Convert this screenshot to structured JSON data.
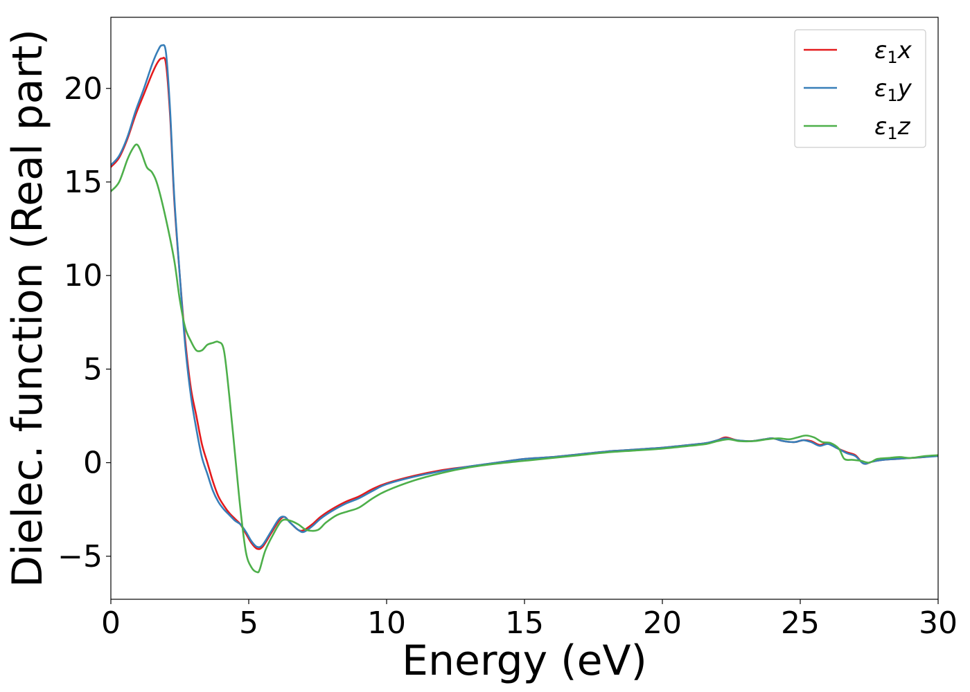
{
  "chart_data": {
    "type": "line",
    "xlabel": "Energy (eV)",
    "ylabel": "Dielec. function (Real part)",
    "xlim": [
      0,
      30
    ],
    "ylim": [
      -7.3,
      23.8
    ],
    "xticks": [
      0,
      5,
      10,
      15,
      20,
      25,
      30
    ],
    "xtick_labels": [
      "0",
      "5",
      "10",
      "15",
      "20",
      "25",
      "30"
    ],
    "yticks": [
      -5,
      0,
      5,
      10,
      15,
      20
    ],
    "ytick_labels": [
      "−5",
      "0",
      "5",
      "10",
      "15",
      "20"
    ],
    "grid": false,
    "legend_position": "top-right",
    "series": [
      {
        "name": "ε1x",
        "legend": {
          "base": "ε",
          "sub": "1",
          "suffix": "x"
        },
        "color": "#e41a1c",
        "x": [
          0,
          0.3,
          0.6,
          0.9,
          1.2,
          1.5,
          1.7,
          1.85,
          2.0,
          2.15,
          2.3,
          2.5,
          2.7,
          2.9,
          3.1,
          3.3,
          3.5,
          3.7,
          3.9,
          4.1,
          4.3,
          4.5,
          4.7,
          4.9,
          5.1,
          5.3,
          5.5,
          5.8,
          6.1,
          6.3,
          6.5,
          6.8,
          7.0,
          7.3,
          7.6,
          8.0,
          8.5,
          9.0,
          9.5,
          10.0,
          11.0,
          12.0,
          13.0,
          14.0,
          15.0,
          16.0,
          17.0,
          18.0,
          19.0,
          20.0,
          21.0,
          21.6,
          22.0,
          22.3,
          22.7,
          23.2,
          23.7,
          24.0,
          24.4,
          24.8,
          25.1,
          25.4,
          25.7,
          26.0,
          26.3,
          26.7,
          27.0,
          27.3,
          27.6,
          28.0,
          28.5,
          29.0,
          29.5,
          30.0
        ],
        "y": [
          15.8,
          16.3,
          17.3,
          18.6,
          19.7,
          20.8,
          21.4,
          21.6,
          21.3,
          18.5,
          14.0,
          10.0,
          6.5,
          4.0,
          2.5,
          1.0,
          0.0,
          -1.0,
          -1.8,
          -2.3,
          -2.7,
          -3.0,
          -3.3,
          -3.8,
          -4.3,
          -4.6,
          -4.5,
          -3.8,
          -3.1,
          -2.9,
          -3.2,
          -3.6,
          -3.6,
          -3.3,
          -2.9,
          -2.5,
          -2.1,
          -1.8,
          -1.4,
          -1.1,
          -0.7,
          -0.4,
          -0.2,
          0.0,
          0.2,
          0.3,
          0.45,
          0.6,
          0.7,
          0.8,
          0.95,
          1.05,
          1.2,
          1.35,
          1.2,
          1.15,
          1.25,
          1.3,
          1.15,
          1.1,
          1.2,
          1.15,
          0.95,
          1.05,
          0.8,
          0.55,
          0.4,
          -0.05,
          0.05,
          0.15,
          0.2,
          0.25,
          0.3,
          0.4
        ]
      },
      {
        "name": "ε1y",
        "legend": {
          "base": "ε",
          "sub": "1",
          "suffix": "y"
        },
        "color": "#377eb8",
        "x": [
          0,
          0.3,
          0.6,
          0.9,
          1.2,
          1.5,
          1.7,
          1.85,
          2.0,
          2.15,
          2.3,
          2.5,
          2.7,
          2.9,
          3.1,
          3.3,
          3.5,
          3.7,
          3.9,
          4.1,
          4.3,
          4.5,
          4.7,
          4.9,
          5.1,
          5.3,
          5.5,
          5.8,
          6.1,
          6.3,
          6.5,
          6.8,
          7.0,
          7.3,
          7.6,
          8.0,
          8.5,
          9.0,
          9.5,
          10.0,
          11.0,
          12.0,
          13.0,
          14.0,
          15.0,
          16.0,
          17.0,
          18.0,
          19.0,
          20.0,
          21.0,
          21.6,
          22.0,
          22.3,
          22.7,
          23.2,
          23.7,
          24.0,
          24.4,
          24.8,
          25.1,
          25.4,
          25.7,
          26.0,
          26.3,
          26.7,
          27.0,
          27.3,
          27.6,
          28.0,
          28.5,
          29.0,
          29.5,
          30.0
        ],
        "y": [
          15.9,
          16.4,
          17.4,
          18.8,
          20.0,
          21.3,
          22.0,
          22.3,
          21.9,
          18.8,
          14.2,
          10.0,
          6.2,
          3.6,
          1.8,
          0.3,
          -0.6,
          -1.5,
          -2.1,
          -2.5,
          -2.8,
          -3.1,
          -3.3,
          -3.7,
          -4.2,
          -4.5,
          -4.4,
          -3.7,
          -3.0,
          -2.9,
          -3.2,
          -3.6,
          -3.7,
          -3.4,
          -3.0,
          -2.6,
          -2.2,
          -1.9,
          -1.5,
          -1.15,
          -0.75,
          -0.45,
          -0.2,
          0.0,
          0.2,
          0.3,
          0.45,
          0.6,
          0.7,
          0.8,
          0.95,
          1.05,
          1.2,
          1.3,
          1.2,
          1.15,
          1.25,
          1.3,
          1.15,
          1.1,
          1.2,
          1.1,
          0.9,
          1.0,
          0.8,
          0.5,
          0.35,
          -0.05,
          0.05,
          0.15,
          0.2,
          0.25,
          0.3,
          0.35
        ]
      },
      {
        "name": "ε1z",
        "legend": {
          "base": "ε",
          "sub": "1",
          "suffix": "z"
        },
        "color": "#4daf4a",
        "x": [
          0,
          0.3,
          0.6,
          0.8,
          0.95,
          1.1,
          1.3,
          1.5,
          1.7,
          2.0,
          2.3,
          2.5,
          2.7,
          2.9,
          3.1,
          3.3,
          3.5,
          3.7,
          3.9,
          4.1,
          4.3,
          4.5,
          4.7,
          4.9,
          5.1,
          5.3,
          5.4,
          5.6,
          5.9,
          6.2,
          6.5,
          6.8,
          7.1,
          7.5,
          7.8,
          8.2,
          8.6,
          9.0,
          9.5,
          10.0,
          11.0,
          12.0,
          13.0,
          14.0,
          15.0,
          16.0,
          17.0,
          18.0,
          19.0,
          20.0,
          21.0,
          21.6,
          22.0,
          22.4,
          22.8,
          23.3,
          23.8,
          24.2,
          24.6,
          24.9,
          25.2,
          25.5,
          25.8,
          26.1,
          26.4,
          26.6,
          26.9,
          27.2,
          27.5,
          27.8,
          28.2,
          28.6,
          29.0,
          29.5,
          30.0
        ],
        "y": [
          14.5,
          15.0,
          16.2,
          16.8,
          17.0,
          16.6,
          15.8,
          15.5,
          14.8,
          13.0,
          10.8,
          8.7,
          7.2,
          6.5,
          6.0,
          6.0,
          6.3,
          6.4,
          6.45,
          6.0,
          3.5,
          0.5,
          -2.5,
          -4.8,
          -5.6,
          -5.85,
          -5.7,
          -4.7,
          -3.8,
          -3.1,
          -3.1,
          -3.3,
          -3.6,
          -3.6,
          -3.2,
          -2.8,
          -2.6,
          -2.4,
          -1.9,
          -1.5,
          -0.95,
          -0.55,
          -0.25,
          -0.05,
          0.1,
          0.25,
          0.4,
          0.55,
          0.65,
          0.75,
          0.9,
          1.0,
          1.15,
          1.25,
          1.15,
          1.15,
          1.25,
          1.3,
          1.25,
          1.35,
          1.45,
          1.35,
          1.1,
          1.05,
          0.75,
          0.2,
          0.15,
          0.1,
          0.0,
          0.2,
          0.25,
          0.3,
          0.25,
          0.35,
          0.4
        ]
      }
    ]
  }
}
